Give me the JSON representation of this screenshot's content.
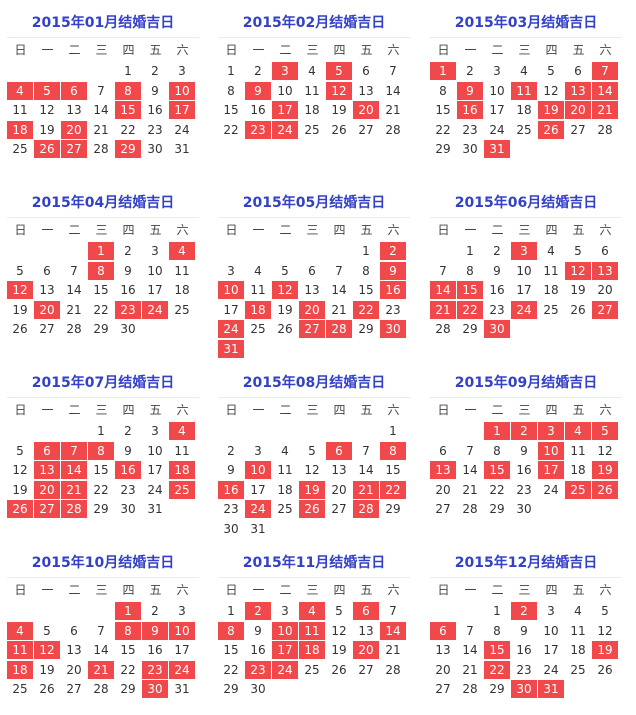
{
  "weekdays": [
    "日",
    "一",
    "二",
    "三",
    "四",
    "五",
    "六"
  ],
  "highlight_color": "#f0484b",
  "title_color": "#3340c8",
  "months": [
    {
      "title": "2015年01月结婚吉日",
      "year": 2015,
      "month": 1,
      "days": 31,
      "auspicious": [
        4,
        5,
        6,
        8,
        10,
        15,
        17,
        18,
        20,
        26,
        27,
        29
      ]
    },
    {
      "title": "2015年02月结婚吉日",
      "year": 2015,
      "month": 2,
      "days": 28,
      "auspicious": [
        3,
        5,
        9,
        12,
        17,
        20,
        23,
        24
      ]
    },
    {
      "title": "2015年03月结婚吉日",
      "year": 2015,
      "month": 3,
      "days": 31,
      "auspicious": [
        1,
        7,
        9,
        11,
        13,
        14,
        16,
        19,
        20,
        21,
        26,
        31
      ]
    },
    {
      "title": "2015年04月结婚吉日",
      "year": 2015,
      "month": 4,
      "days": 30,
      "auspicious": [
        1,
        4,
        8,
        12,
        20,
        23,
        24
      ]
    },
    {
      "title": "2015年05月结婚吉日",
      "year": 2015,
      "month": 5,
      "days": 31,
      "auspicious": [
        2,
        9,
        10,
        12,
        16,
        18,
        20,
        22,
        24,
        27,
        28,
        30,
        31
      ]
    },
    {
      "title": "2015年06月结婚吉日",
      "year": 2015,
      "month": 6,
      "days": 30,
      "auspicious": [
        3,
        12,
        13,
        14,
        15,
        21,
        22,
        24,
        27,
        30
      ]
    },
    {
      "title": "2015年07月结婚吉日",
      "year": 2015,
      "month": 7,
      "days": 31,
      "auspicious": [
        4,
        6,
        7,
        8,
        13,
        14,
        16,
        18,
        20,
        21,
        25,
        26,
        27,
        28
      ]
    },
    {
      "title": "2015年08月结婚吉日",
      "year": 2015,
      "month": 8,
      "days": 31,
      "auspicious": [
        6,
        8,
        10,
        16,
        19,
        21,
        22,
        24,
        26,
        28
      ]
    },
    {
      "title": "2015年09月结婚吉日",
      "year": 2015,
      "month": 9,
      "days": 30,
      "auspicious": [
        1,
        2,
        3,
        4,
        5,
        10,
        13,
        15,
        17,
        19,
        25,
        26
      ]
    },
    {
      "title": "2015年10月结婚吉日",
      "year": 2015,
      "month": 10,
      "days": 31,
      "auspicious": [
        1,
        4,
        8,
        9,
        10,
        11,
        12,
        18,
        21,
        23,
        24,
        30
      ]
    },
    {
      "title": "2015年11月结婚吉日",
      "year": 2015,
      "month": 11,
      "days": 30,
      "auspicious": [
        2,
        4,
        6,
        8,
        10,
        11,
        14,
        17,
        18,
        20,
        23,
        24
      ]
    },
    {
      "title": "2015年12月结婚吉日",
      "year": 2015,
      "month": 12,
      "days": 31,
      "auspicious": [
        2,
        6,
        15,
        19,
        22,
        30,
        31
      ]
    }
  ]
}
